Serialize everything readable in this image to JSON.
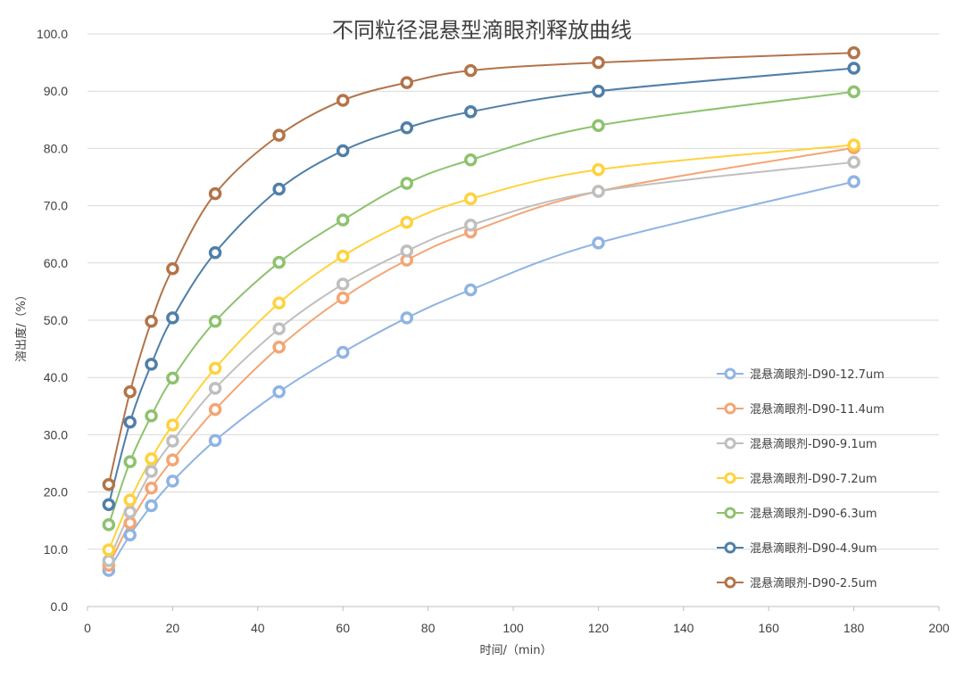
{
  "chart_data": {
    "type": "line",
    "title": "不同粒径混悬型滴眼剂释放曲线",
    "xlabel": "时间/（min）",
    "ylabel": "溶出度/（%）",
    "xlim": [
      0,
      200
    ],
    "ylim": [
      0,
      100
    ],
    "x_ticks": [
      "0",
      "20",
      "40",
      "60",
      "80",
      "100",
      "120",
      "140",
      "160",
      "180",
      "200"
    ],
    "y_ticks": [
      "0.0",
      "10.0",
      "20.0",
      "30.0",
      "40.0",
      "50.0",
      "60.0",
      "70.0",
      "80.0",
      "90.0",
      "100.0"
    ],
    "grid": "horizontal",
    "legend_position": "right",
    "smooth": true,
    "x": [
      5,
      10,
      15,
      20,
      30,
      45,
      60,
      75,
      90,
      120,
      180
    ],
    "series": [
      {
        "name": "混悬滴眼剂-D90-12.7um",
        "color": "#8fb4e3",
        "values": [
          6.3,
          12.5,
          17.6,
          21.9,
          29.0,
          37.5,
          44.4,
          50.4,
          55.3,
          63.5,
          74.2
        ]
      },
      {
        "name": "混悬滴眼剂-D90-11.4um",
        "color": "#f4a574",
        "values": [
          7.2,
          14.6,
          20.7,
          25.6,
          34.4,
          45.3,
          53.9,
          60.5,
          65.4,
          72.5,
          80.1
        ]
      },
      {
        "name": "混悬滴眼剂-D90-9.1um",
        "color": "#bfbfbf",
        "values": [
          8.0,
          16.5,
          23.6,
          28.9,
          38.1,
          48.5,
          56.3,
          62.1,
          66.6,
          72.5,
          77.6
        ]
      },
      {
        "name": "混悬滴眼剂-D90-7.2um",
        "color": "#ffd23c",
        "values": [
          9.9,
          18.6,
          25.8,
          31.7,
          41.6,
          53.0,
          61.2,
          67.1,
          71.2,
          76.3,
          80.6
        ]
      },
      {
        "name": "混悬滴眼剂-D90-6.3um",
        "color": "#8dc26e",
        "values": [
          14.3,
          25.3,
          33.3,
          39.9,
          49.8,
          60.1,
          67.5,
          73.9,
          78.0,
          84.0,
          89.9
        ]
      },
      {
        "name": "混悬滴眼剂-D90-4.9um",
        "color": "#4f7fa8",
        "values": [
          17.8,
          32.2,
          42.3,
          50.4,
          61.8,
          72.9,
          79.6,
          83.6,
          86.4,
          90.0,
          94.0
        ]
      },
      {
        "name": "混悬滴眼剂-D90-2.5um",
        "color": "#b2744a",
        "values": [
          21.3,
          37.5,
          49.8,
          59.0,
          72.1,
          82.3,
          88.4,
          91.5,
          93.6,
          95.0,
          96.7
        ]
      }
    ]
  }
}
